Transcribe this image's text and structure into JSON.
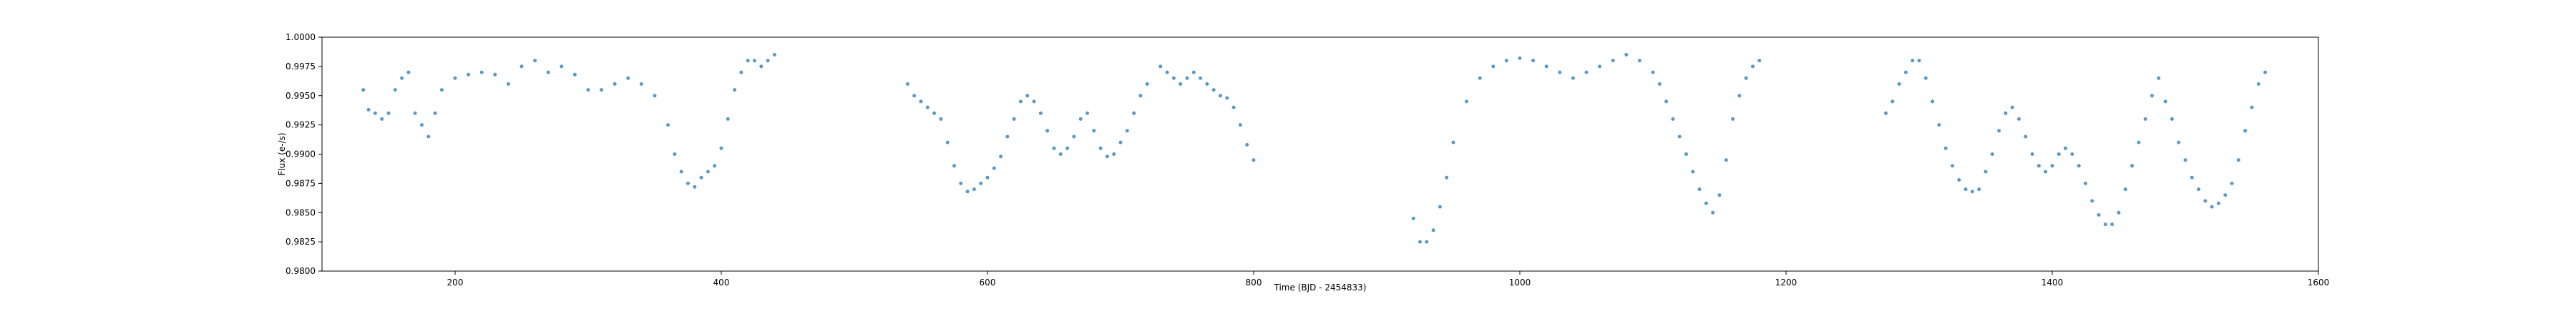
{
  "chart_data": {
    "type": "scatter",
    "title": "",
    "xlabel": "Time (BJD - 2454833)",
    "ylabel": "Flux (e-/s)",
    "xlim": [
      100,
      1600
    ],
    "ylim": [
      0.98,
      1.0
    ],
    "xticks": [
      200,
      400,
      600,
      800,
      1000,
      1200,
      1400,
      1600
    ],
    "yticks": [
      0.98,
      0.9825,
      0.985,
      0.9875,
      0.99,
      0.9925,
      0.995,
      0.9975,
      1.0
    ],
    "xtick_labels": [
      "200",
      "400",
      "600",
      "800",
      "1000",
      "1200",
      "1400",
      "1600"
    ],
    "ytick_labels": [
      "0.9800",
      "0.9825",
      "0.9850",
      "0.9875",
      "0.9900",
      "0.9925",
      "0.9950",
      "0.9975",
      "1.0000"
    ],
    "grid": false,
    "marker_color": "#1f77b4",
    "series": [
      {
        "x": [
          131,
          135,
          140,
          145,
          150,
          155,
          160,
          165,
          170,
          175,
          180,
          185,
          190,
          200,
          210,
          220,
          230,
          240,
          250,
          260,
          270,
          280,
          290,
          300,
          310,
          320,
          330,
          340,
          350,
          360,
          365,
          370,
          375,
          380,
          385,
          390,
          395,
          400,
          405,
          410,
          415,
          420,
          425,
          430,
          435,
          440
        ],
        "y": [
          0.9955,
          0.9938,
          0.9935,
          0.993,
          0.9935,
          0.9955,
          0.9965,
          0.997,
          0.9935,
          0.9925,
          0.9915,
          0.9935,
          0.9955,
          0.9965,
          0.9968,
          0.997,
          0.9968,
          0.996,
          0.9975,
          0.998,
          0.997,
          0.9975,
          0.9968,
          0.9955,
          0.9955,
          0.996,
          0.9965,
          0.996,
          0.995,
          0.9925,
          0.99,
          0.9885,
          0.9875,
          0.9872,
          0.988,
          0.9885,
          0.989,
          0.9905,
          0.993,
          0.9955,
          0.997,
          0.998,
          0.998,
          0.9975,
          0.998,
          0.9985
        ]
      },
      {
        "x": [
          540,
          545,
          550,
          555,
          560,
          565,
          570,
          575,
          580,
          585,
          590,
          595,
          600,
          605,
          610,
          615,
          620,
          625,
          630,
          635,
          640,
          645,
          650,
          655,
          660,
          665,
          670,
          675,
          680,
          685,
          690,
          695,
          700,
          705,
          710,
          715,
          720
        ],
        "y": [
          0.996,
          0.995,
          0.9945,
          0.994,
          0.9935,
          0.993,
          0.991,
          0.989,
          0.9875,
          0.9868,
          0.987,
          0.9875,
          0.988,
          0.9888,
          0.9898,
          0.9915,
          0.993,
          0.9945,
          0.995,
          0.9945,
          0.9935,
          0.992,
          0.9905,
          0.99,
          0.9905,
          0.9915,
          0.993,
          0.9935,
          0.992,
          0.9905,
          0.9898,
          0.99,
          0.991,
          0.992,
          0.9935,
          0.995,
          0.996
        ]
      },
      {
        "x": [
          730,
          735,
          740,
          745,
          750,
          755,
          760,
          765,
          770,
          775,
          780,
          785,
          790,
          795,
          800
        ],
        "y": [
          0.9975,
          0.997,
          0.9965,
          0.996,
          0.9965,
          0.997,
          0.9965,
          0.996,
          0.9955,
          0.995,
          0.9948,
          0.994,
          0.9925,
          0.9908,
          0.9895
        ]
      },
      {
        "x": [
          920,
          925,
          930,
          935,
          940,
          945,
          950,
          960,
          970,
          980,
          990,
          1000,
          1010,
          1020,
          1030,
          1040,
          1050,
          1060,
          1070,
          1080,
          1090,
          1100,
          1105,
          1110,
          1115,
          1120,
          1125,
          1130,
          1135,
          1140,
          1145,
          1150,
          1155,
          1160,
          1165,
          1170,
          1175,
          1180
        ],
        "y": [
          0.9845,
          0.9825,
          0.9825,
          0.9835,
          0.9855,
          0.988,
          0.991,
          0.9945,
          0.9965,
          0.9975,
          0.998,
          0.9982,
          0.998,
          0.9975,
          0.997,
          0.9965,
          0.997,
          0.9975,
          0.998,
          0.9985,
          0.998,
          0.997,
          0.996,
          0.9945,
          0.993,
          0.9915,
          0.99,
          0.9885,
          0.987,
          0.9858,
          0.985,
          0.9865,
          0.9895,
          0.993,
          0.995,
          0.9965,
          0.9975,
          0.998
        ]
      },
      {
        "x": [
          1275,
          1280,
          1285,
          1290,
          1295,
          1300,
          1305,
          1310,
          1315,
          1320,
          1325,
          1330,
          1335,
          1340,
          1345,
          1350,
          1355,
          1360,
          1365,
          1370,
          1375,
          1380,
          1385,
          1390,
          1395,
          1400,
          1405,
          1410,
          1415,
          1420,
          1425,
          1430,
          1435,
          1440,
          1445,
          1450,
          1455,
          1460,
          1465,
          1470,
          1475,
          1480
        ],
        "y": [
          0.9935,
          0.9945,
          0.996,
          0.997,
          0.998,
          0.998,
          0.9965,
          0.9945,
          0.9925,
          0.9905,
          0.989,
          0.9878,
          0.987,
          0.9868,
          0.987,
          0.9885,
          0.99,
          0.992,
          0.9935,
          0.994,
          0.993,
          0.9915,
          0.99,
          0.989,
          0.9885,
          0.989,
          0.99,
          0.9905,
          0.99,
          0.989,
          0.9875,
          0.986,
          0.9848,
          0.984,
          0.984,
          0.985,
          0.987,
          0.989,
          0.991,
          0.993,
          0.995,
          0.9965
        ]
      },
      {
        "x": [
          1485,
          1490,
          1495,
          1500,
          1505,
          1510,
          1515,
          1520,
          1525,
          1530,
          1535,
          1540,
          1545,
          1550,
          1555,
          1560
        ],
        "y": [
          0.9945,
          0.993,
          0.991,
          0.9895,
          0.988,
          0.987,
          0.986,
          0.9855,
          0.9858,
          0.9865,
          0.9875,
          0.9895,
          0.992,
          0.994,
          0.996,
          0.997
        ]
      }
    ]
  }
}
